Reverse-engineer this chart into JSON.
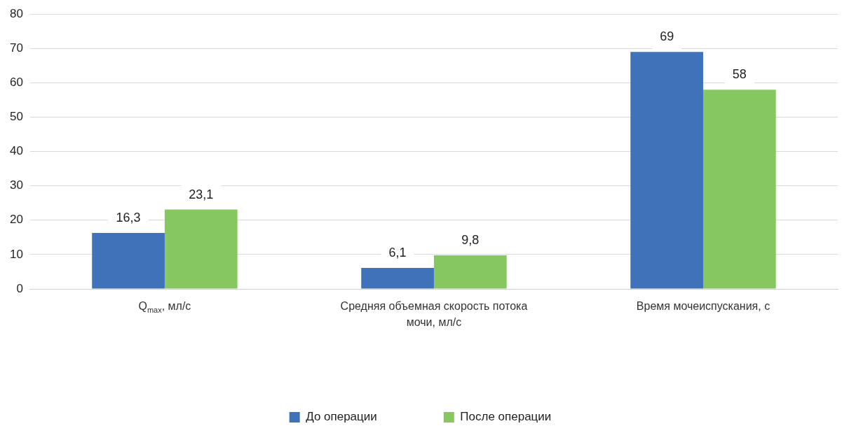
{
  "chart_data": {
    "type": "bar",
    "categories": [
      "Q$_{max}$, мл/с",
      "Средняя объемная скорость потока мочи, мл/с",
      "Время мочеиспускания, с"
    ],
    "series": [
      {
        "name": "До операции",
        "color": "#3f72b9",
        "values": [
          16.3,
          6.1,
          69
        ],
        "value_labels": [
          "16,3",
          "6,1",
          "69"
        ]
      },
      {
        "name": "После операции",
        "color": "#86c75f",
        "values": [
          23.1,
          9.8,
          58
        ],
        "value_labels": [
          "23,1",
          "9,8",
          "58"
        ]
      }
    ],
    "ylim": [
      0,
      80
    ],
    "yticks": [
      0,
      10,
      20,
      30,
      40,
      50,
      60,
      70,
      80
    ],
    "grid": "y",
    "legend": "bottom"
  }
}
